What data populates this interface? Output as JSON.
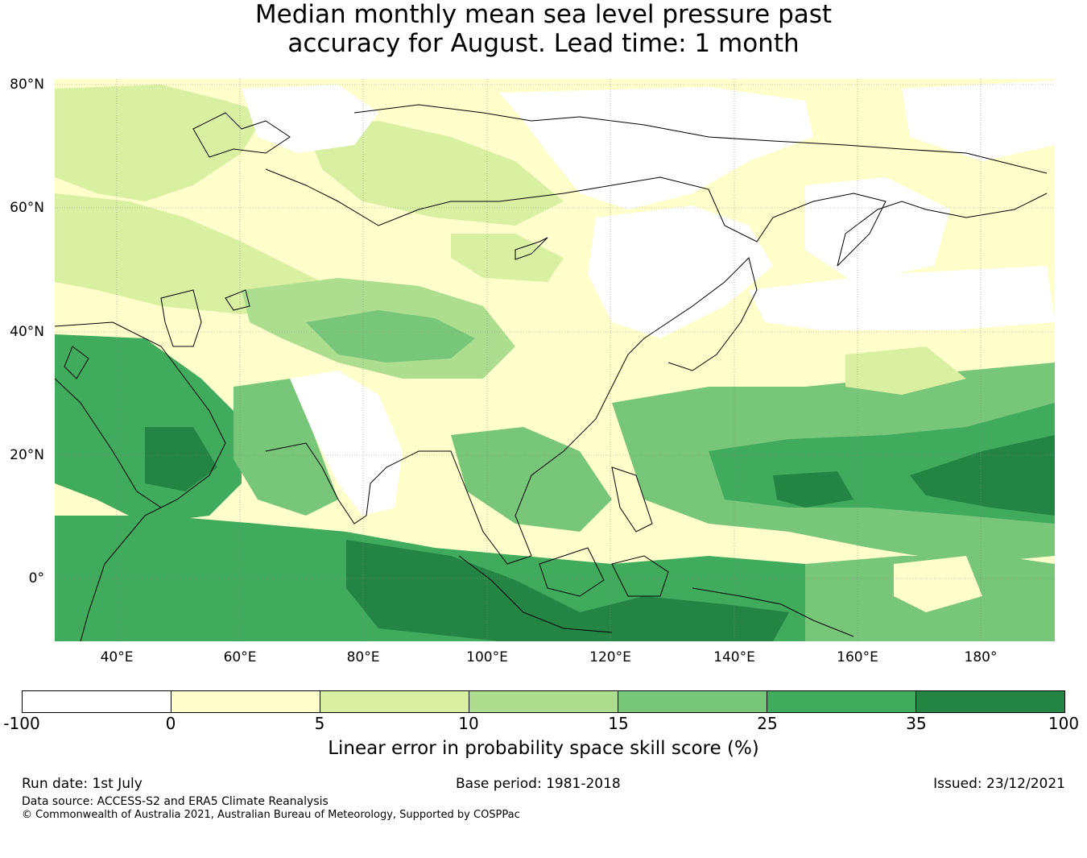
{
  "title": {
    "line1": "Median monthly mean sea level pressure past",
    "line2": "accuracy for August. Lead time: 1 month"
  },
  "map": {
    "lat_labels": [
      "80°N",
      "60°N",
      "40°N",
      "20°N",
      "0°"
    ],
    "lon_labels": [
      "40°E",
      "60°E",
      "80°E",
      "100°E",
      "120°E",
      "140°E",
      "160°E",
      "180°"
    ],
    "lat_range": [
      -10,
      80
    ],
    "lon_range": [
      30,
      192
    ]
  },
  "colorbar": {
    "ticks": [
      "-100",
      "0",
      "5",
      "10",
      "15",
      "25",
      "35",
      "100"
    ],
    "colors": [
      "#ffffff",
      "#ffffcc",
      "#d9f0a3",
      "#addd8e",
      "#78c679",
      "#41ab5d",
      "#238443"
    ],
    "label": "Linear error in probability space skill score (%)"
  },
  "footer": {
    "run_date": "Run date: 1st July",
    "base_period": "Base period: 1981-2018",
    "issued": "Issued: 23/12/2021",
    "data_source": "Data source: ACCESS-S2 and ERA5 Climate Reanalysis",
    "copyright": "© Commonwealth of Australia 2021, Australian Bureau of Meteorology, Supported by COSPPac"
  }
}
